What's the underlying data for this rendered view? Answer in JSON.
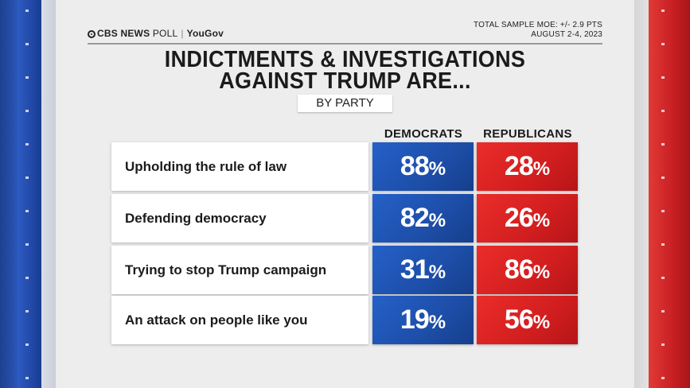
{
  "header": {
    "brand": "CBS NEWS",
    "poll": "POLL",
    "partner": "YouGov",
    "moe": "TOTAL SAMPLE MOE: +/- 2.9 PTS",
    "date": "AUGUST 2-4, 2023"
  },
  "title_line1": "INDICTMENTS & INVESTIGATIONS",
  "title_line2": "AGAINST TRUMP ARE...",
  "subtitle": "BY PARTY",
  "colors": {
    "democrats": "#1f55b4",
    "republicans": "#d92222"
  },
  "chart_data": {
    "type": "table",
    "title": "INDICTMENTS & INVESTIGATIONS AGAINST TRUMP ARE...",
    "subtitle": "BY PARTY",
    "columns": [
      "DEMOCRATS",
      "REPUBLICANS"
    ],
    "categories": [
      "Upholding the rule of law",
      "Defending democracy",
      "Trying to stop Trump campaign",
      "An attack on people like you"
    ],
    "series": [
      {
        "name": "DEMOCRATS",
        "values": [
          88,
          82,
          31,
          19
        ]
      },
      {
        "name": "REPUBLICANS",
        "values": [
          28,
          26,
          86,
          56
        ]
      }
    ],
    "unit": "%"
  }
}
